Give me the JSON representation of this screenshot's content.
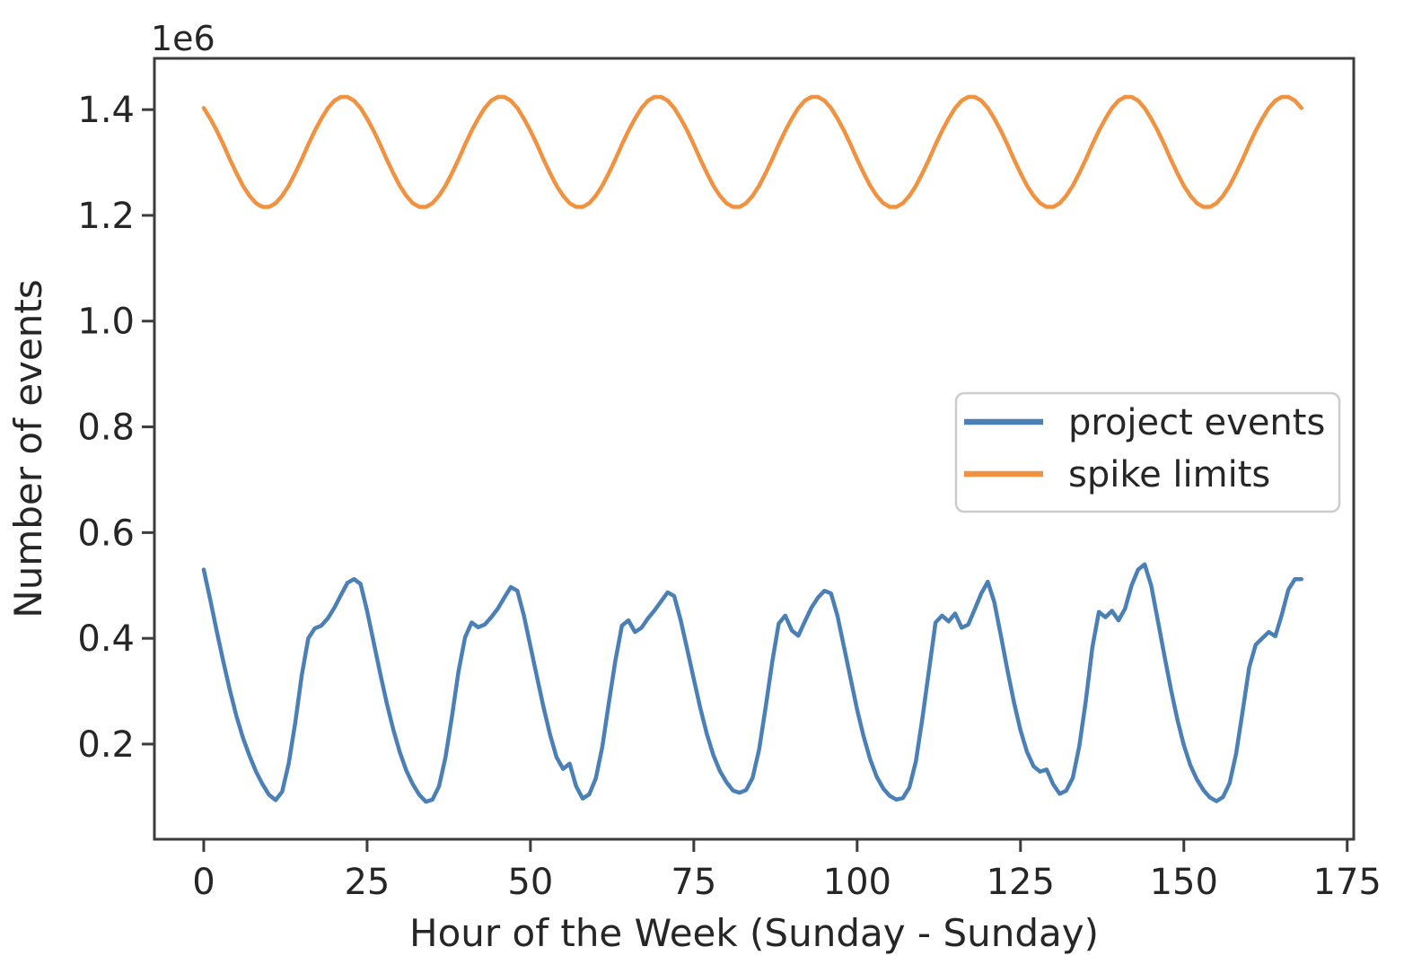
{
  "page": {
    "background": "#ffffff"
  },
  "chart_data": {
    "type": "line",
    "title": "",
    "xlabel": "Hour of the Week (Sunday - Sunday)",
    "ylabel": "Number of events",
    "y_axis_offset_text": "1e6",
    "unit_multiplier": 1000000,
    "x_start": 0,
    "x_step": 1,
    "x_end": 168,
    "xlim": [
      -7.55,
      176.0
    ],
    "ylim_e6": [
      0.02,
      1.497
    ],
    "x_ticks": [
      0,
      25,
      50,
      75,
      100,
      125,
      150,
      175
    ],
    "y_ticks_e6": [
      0.2,
      0.4,
      0.6,
      0.8,
      1.0,
      1.2,
      1.4
    ],
    "grid": false,
    "legend": {
      "location": "center right"
    },
    "colors": {
      "axis": "#3c3c3c",
      "text": "#262626",
      "legend_border": "#cccccc",
      "background": "#ffffff"
    },
    "series": [
      {
        "name": "project events",
        "color": "#4a80b6",
        "values_e6": [
          0.53,
          0.473,
          0.413,
          0.356,
          0.302,
          0.253,
          0.212,
          0.178,
          0.148,
          0.124,
          0.104,
          0.094,
          0.11,
          0.163,
          0.24,
          0.33,
          0.4,
          0.419,
          0.424,
          0.438,
          0.458,
          0.482,
          0.505,
          0.512,
          0.503,
          0.452,
          0.393,
          0.334,
          0.278,
          0.228,
          0.185,
          0.15,
          0.124,
          0.104,
          0.091,
          0.095,
          0.12,
          0.175,
          0.253,
          0.338,
          0.402,
          0.43,
          0.421,
          0.426,
          0.44,
          0.456,
          0.477,
          0.497,
          0.49,
          0.443,
          0.385,
          0.327,
          0.27,
          0.218,
          0.175,
          0.153,
          0.163,
          0.12,
          0.097,
          0.105,
          0.135,
          0.195,
          0.278,
          0.358,
          0.424,
          0.434,
          0.412,
          0.42,
          0.438,
          0.453,
          0.47,
          0.487,
          0.48,
          0.434,
          0.379,
          0.323,
          0.268,
          0.219,
          0.179,
          0.149,
          0.128,
          0.112,
          0.108,
          0.113,
          0.136,
          0.19,
          0.27,
          0.355,
          0.428,
          0.443,
          0.415,
          0.405,
          0.432,
          0.458,
          0.477,
          0.49,
          0.485,
          0.442,
          0.383,
          0.324,
          0.265,
          0.214,
          0.171,
          0.138,
          0.116,
          0.102,
          0.095,
          0.098,
          0.118,
          0.168,
          0.25,
          0.34,
          0.43,
          0.443,
          0.432,
          0.447,
          0.42,
          0.426,
          0.455,
          0.485,
          0.507,
          0.468,
          0.405,
          0.34,
          0.279,
          0.226,
          0.185,
          0.158,
          0.148,
          0.152,
          0.124,
          0.106,
          0.112,
          0.136,
          0.196,
          0.282,
          0.383,
          0.45,
          0.44,
          0.452,
          0.434,
          0.456,
          0.5,
          0.53,
          0.54,
          0.5,
          0.435,
          0.369,
          0.305,
          0.247,
          0.198,
          0.16,
          0.133,
          0.113,
          0.099,
          0.092,
          0.1,
          0.126,
          0.182,
          0.262,
          0.345,
          0.388,
          0.4,
          0.412,
          0.404,
          0.445,
          0.492,
          0.512,
          0.512
        ]
      },
      {
        "name": "spike limits",
        "color": "#f0923f",
        "values_e6": [
          1.403,
          1.383,
          1.36,
          1.334,
          1.306,
          1.28,
          1.256,
          1.237,
          1.223,
          1.216,
          1.216,
          1.223,
          1.237,
          1.256,
          1.28,
          1.306,
          1.334,
          1.36,
          1.383,
          1.403,
          1.417,
          1.424,
          1.424,
          1.417,
          1.403,
          1.383,
          1.36,
          1.334,
          1.306,
          1.28,
          1.256,
          1.237,
          1.223,
          1.216,
          1.216,
          1.223,
          1.237,
          1.256,
          1.28,
          1.306,
          1.334,
          1.36,
          1.383,
          1.403,
          1.417,
          1.424,
          1.424,
          1.417,
          1.403,
          1.383,
          1.36,
          1.334,
          1.306,
          1.28,
          1.256,
          1.237,
          1.223,
          1.216,
          1.216,
          1.223,
          1.237,
          1.256,
          1.28,
          1.306,
          1.334,
          1.36,
          1.383,
          1.403,
          1.417,
          1.424,
          1.424,
          1.417,
          1.403,
          1.383,
          1.36,
          1.334,
          1.306,
          1.28,
          1.256,
          1.237,
          1.223,
          1.216,
          1.216,
          1.223,
          1.237,
          1.256,
          1.28,
          1.306,
          1.334,
          1.36,
          1.383,
          1.403,
          1.417,
          1.424,
          1.424,
          1.417,
          1.403,
          1.383,
          1.36,
          1.334,
          1.306,
          1.28,
          1.256,
          1.237,
          1.223,
          1.216,
          1.216,
          1.223,
          1.237,
          1.256,
          1.28,
          1.306,
          1.334,
          1.36,
          1.383,
          1.403,
          1.417,
          1.424,
          1.424,
          1.417,
          1.403,
          1.383,
          1.36,
          1.334,
          1.306,
          1.28,
          1.256,
          1.237,
          1.223,
          1.216,
          1.216,
          1.223,
          1.237,
          1.256,
          1.28,
          1.306,
          1.334,
          1.36,
          1.383,
          1.403,
          1.417,
          1.424,
          1.424,
          1.417,
          1.403,
          1.383,
          1.36,
          1.334,
          1.306,
          1.28,
          1.256,
          1.237,
          1.223,
          1.216,
          1.216,
          1.223,
          1.237,
          1.256,
          1.28,
          1.306,
          1.334,
          1.36,
          1.383,
          1.403,
          1.417,
          1.424,
          1.424,
          1.417,
          1.403
        ]
      }
    ]
  }
}
